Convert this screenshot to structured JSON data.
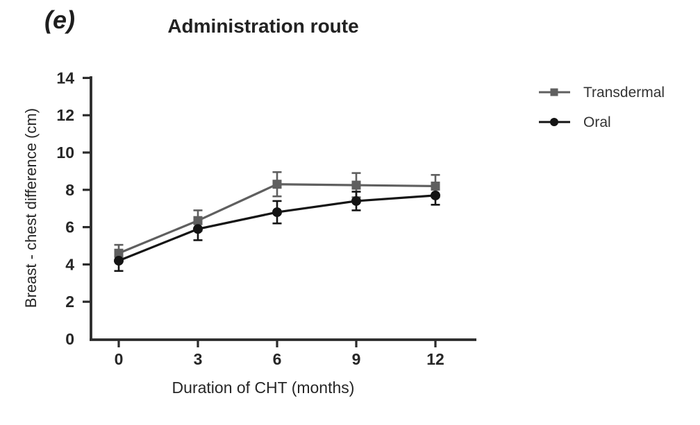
{
  "figure": {
    "panel_label": "(e)",
    "background": "#ffffff"
  },
  "chart_data": {
    "type": "line",
    "title": "Administration route",
    "xlabel": "Duration of CHT (months)",
    "ylabel": "Breast - chest difference (cm)",
    "x": [
      0,
      3,
      6,
      9,
      12
    ],
    "xtick_labels": [
      "0",
      "3",
      "6",
      "9",
      "12"
    ],
    "yticks": [
      0,
      2,
      4,
      6,
      8,
      10,
      12,
      14
    ],
    "ytick_labels": [
      "0",
      "2",
      "4",
      "6",
      "8",
      "10",
      "12",
      "14"
    ],
    "ylim": [
      0,
      14
    ],
    "xlim": [
      -1.05,
      13.55
    ],
    "grid": false,
    "error_bars": true,
    "legend_position": "right-top",
    "axis_color": "#2b2b2b",
    "text_color": "#262626",
    "series": [
      {
        "name": "Transdermal",
        "marker": "square",
        "color": "#5f5f5f",
        "values": [
          4.6,
          6.35,
          8.3,
          8.25,
          8.2
        ],
        "errors": [
          0.45,
          0.55,
          0.65,
          0.65,
          0.6
        ]
      },
      {
        "name": "Oral",
        "marker": "circle",
        "color": "#141414",
        "values": [
          4.2,
          5.9,
          6.8,
          7.4,
          7.7
        ],
        "errors": [
          0.55,
          0.6,
          0.6,
          0.5,
          0.5
        ]
      }
    ]
  }
}
